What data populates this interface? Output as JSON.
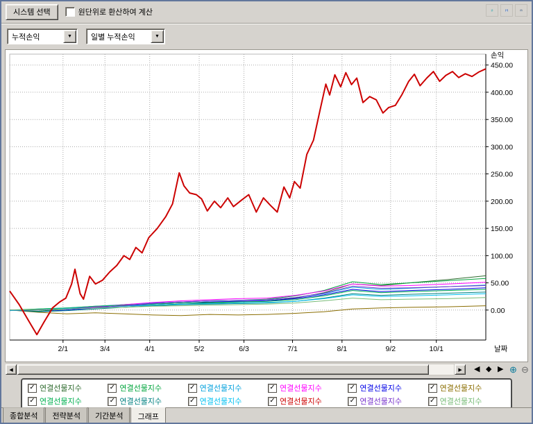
{
  "app": {
    "background": "#d6d3ce",
    "accent_red": "#cc0000"
  },
  "toolbar": {
    "system_select_label": "시스템 선택",
    "checkbox_label": "원단위로 환산하여 계산",
    "checkbox_checked": false,
    "icons": [
      {
        "name": "refresh-icon",
        "color": "#009aa8"
      },
      {
        "name": "save-icon",
        "color": "#3a66b0"
      },
      {
        "name": "print-icon",
        "color": "#5a6a7a"
      }
    ]
  },
  "filters": {
    "combo1_value": "누적손익",
    "combo2_value": "일별 누적손익",
    "dropdown_glyph": "▼"
  },
  "chart_data": {
    "type": "line",
    "title": "",
    "ylabel": "손익",
    "xlabel": "날짜",
    "ylim": [
      -55,
      470
    ],
    "grid": true,
    "legend_position": "bottom",
    "y_tick_values": [
      450,
      400,
      350,
      300,
      250,
      200,
      150,
      100,
      50,
      0
    ],
    "y_ticks": [
      "450.00",
      "400.00",
      "350.00",
      "300.00",
      "250.00",
      "200.00",
      "150.00",
      "100.00",
      "50.00",
      "0.00"
    ],
    "x_ticks": [
      {
        "label": "2/1",
        "pos": 0.112
      },
      {
        "label": "3/4",
        "pos": 0.2
      },
      {
        "label": "4/1",
        "pos": 0.294
      },
      {
        "label": "5/2",
        "pos": 0.398
      },
      {
        "label": "6/3",
        "pos": 0.492
      },
      {
        "label": "7/1",
        "pos": 0.594
      },
      {
        "label": "8/1",
        "pos": 0.698
      },
      {
        "label": "9/2",
        "pos": 0.8
      },
      {
        "label": "10/1",
        "pos": 0.896
      }
    ],
    "x_shared": [
      0,
      0.06,
      0.12,
      0.18,
      0.24,
      0.3,
      0.36,
      0.42,
      0.48,
      0.54,
      0.6,
      0.66,
      0.72,
      0.78,
      0.84,
      0.92,
      1.0
    ],
    "series": [
      {
        "name": "연결선물지수",
        "color": "#2d6a2d",
        "width": 1,
        "values": [
          0,
          1,
          3,
          5,
          7,
          9,
          11,
          13,
          15,
          17,
          22,
          32,
          48,
          45,
          50,
          56,
          63
        ]
      },
      {
        "name": "연결선물지수",
        "color": "#00a43c",
        "width": 1,
        "values": [
          0,
          -2,
          2,
          6,
          10,
          13,
          15,
          17,
          18,
          20,
          26,
          36,
          52,
          47,
          50,
          54,
          58
        ]
      },
      {
        "name": "연결선물지수",
        "color": "#00a0dc",
        "width": 1,
        "values": [
          -1,
          2,
          4,
          7,
          10,
          13,
          15,
          17,
          18,
          19,
          23,
          30,
          42,
          38,
          40,
          43,
          46
        ]
      },
      {
        "name": "연결선물지수",
        "color": "#ff00ff",
        "width": 1,
        "values": [
          0,
          1,
          3,
          6,
          10,
          14,
          17,
          19,
          21,
          22,
          27,
          35,
          48,
          44,
          45,
          48,
          51
        ]
      },
      {
        "name": "연결선물지수",
        "color": "#0000e6",
        "width": 1,
        "values": [
          0,
          -3,
          0,
          4,
          8,
          11,
          13,
          15,
          16,
          17,
          21,
          28,
          38,
          34,
          36,
          38,
          41
        ]
      },
      {
        "name": "연결선물지수",
        "color": "#8a6d00",
        "width": 1,
        "values": [
          0,
          -4,
          -7,
          -5,
          -7,
          -9,
          -10,
          -8,
          -9,
          -8,
          -6,
          -3,
          2,
          4,
          5,
          6,
          8
        ]
      },
      {
        "name": "연결선물지수",
        "color": "#00b050",
        "width": 1,
        "values": [
          0,
          2,
          4,
          7,
          9,
          11,
          13,
          14,
          15,
          16,
          19,
          26,
          36,
          32,
          34,
          36,
          38
        ]
      },
      {
        "name": "연결선물지수",
        "color": "#008080",
        "width": 1,
        "values": [
          0,
          -3,
          -1,
          2,
          5,
          8,
          10,
          11,
          12,
          13,
          16,
          22,
          30,
          27,
          29,
          31,
          33
        ]
      },
      {
        "name": "연결선물지수",
        "color": "#00c0f0",
        "width": 1,
        "values": [
          -1,
          1,
          3,
          5,
          7,
          9,
          11,
          12,
          13,
          14,
          16,
          21,
          28,
          25,
          26,
          28,
          30
        ]
      },
      {
        "name": "연결선물지수",
        "color": "#7733cc",
        "width": 1,
        "values": [
          0,
          0,
          2,
          5,
          8,
          12,
          15,
          17,
          18,
          19,
          23,
          31,
          44,
          40,
          41,
          43,
          45
        ]
      },
      {
        "name": "연결선물지수",
        "color": "#77bb77",
        "width": 1,
        "values": [
          0,
          1,
          2,
          4,
          5,
          7,
          8,
          9,
          10,
          11,
          13,
          17,
          22,
          19,
          20,
          21,
          23
        ]
      },
      {
        "name": "연결선물지수",
        "color": "#cc0000",
        "width": 2,
        "points": [
          [
            0,
            35
          ],
          [
            0.02,
            10
          ],
          [
            0.04,
            -20
          ],
          [
            0.057,
            -45
          ],
          [
            0.072,
            -22
          ],
          [
            0.09,
            4
          ],
          [
            0.105,
            15
          ],
          [
            0.118,
            22
          ],
          [
            0.13,
            48
          ],
          [
            0.137,
            75
          ],
          [
            0.148,
            30
          ],
          [
            0.155,
            20
          ],
          [
            0.168,
            62
          ],
          [
            0.18,
            48
          ],
          [
            0.195,
            55
          ],
          [
            0.21,
            70
          ],
          [
            0.225,
            82
          ],
          [
            0.24,
            100
          ],
          [
            0.252,
            93
          ],
          [
            0.265,
            115
          ],
          [
            0.278,
            105
          ],
          [
            0.292,
            133
          ],
          [
            0.31,
            150
          ],
          [
            0.328,
            172
          ],
          [
            0.342,
            195
          ],
          [
            0.356,
            252
          ],
          [
            0.366,
            228
          ],
          [
            0.378,
            215
          ],
          [
            0.392,
            212
          ],
          [
            0.403,
            204
          ],
          [
            0.415,
            182
          ],
          [
            0.43,
            200
          ],
          [
            0.443,
            188
          ],
          [
            0.458,
            206
          ],
          [
            0.47,
            190
          ],
          [
            0.487,
            202
          ],
          [
            0.502,
            212
          ],
          [
            0.518,
            180
          ],
          [
            0.533,
            206
          ],
          [
            0.548,
            192
          ],
          [
            0.562,
            180
          ],
          [
            0.576,
            226
          ],
          [
            0.588,
            206
          ],
          [
            0.598,
            236
          ],
          [
            0.61,
            224
          ],
          [
            0.624,
            286
          ],
          [
            0.638,
            312
          ],
          [
            0.652,
            368
          ],
          [
            0.664,
            415
          ],
          [
            0.672,
            395
          ],
          [
            0.683,
            432
          ],
          [
            0.695,
            410
          ],
          [
            0.706,
            436
          ],
          [
            0.718,
            414
          ],
          [
            0.729,
            426
          ],
          [
            0.742,
            381
          ],
          [
            0.756,
            392
          ],
          [
            0.77,
            386
          ],
          [
            0.784,
            362
          ],
          [
            0.796,
            372
          ],
          [
            0.81,
            376
          ],
          [
            0.824,
            396
          ],
          [
            0.838,
            420
          ],
          [
            0.85,
            433
          ],
          [
            0.862,
            412
          ],
          [
            0.876,
            426
          ],
          [
            0.89,
            438
          ],
          [
            0.903,
            420
          ],
          [
            0.916,
            431
          ],
          [
            0.93,
            438
          ],
          [
            0.943,
            427
          ],
          [
            0.957,
            434
          ],
          [
            0.971,
            429
          ],
          [
            0.985,
            437
          ],
          [
            1,
            443
          ]
        ]
      }
    ]
  },
  "scrollbar": {
    "left_arrow": "◀",
    "right_arrow": "▶",
    "nav_left": "◀",
    "nav_center": "◆",
    "nav_right": "▶",
    "zoom_in": "⊕",
    "zoom_out": "⊖"
  },
  "legend": {
    "check_glyph": "✓",
    "items": [
      {
        "label": "연결선물지수",
        "color": "#2d6a2d",
        "checked": true
      },
      {
        "label": "연결선물지수",
        "color": "#00a43c",
        "checked": true
      },
      {
        "label": "연결선물지수",
        "color": "#00a0dc",
        "checked": true
      },
      {
        "label": "연결선물지수",
        "color": "#ff00ff",
        "checked": true
      },
      {
        "label": "연결선물지수",
        "color": "#0000e6",
        "checked": true
      },
      {
        "label": "연결선물지수",
        "color": "#8a6d00",
        "checked": true
      },
      {
        "label": "연결선물지수",
        "color": "#00b050",
        "checked": true
      },
      {
        "label": "연결선물지수",
        "color": "#008080",
        "checked": true
      },
      {
        "label": "연결선물지수",
        "color": "#00c0f0",
        "checked": true
      },
      {
        "label": "연결선물지수",
        "color": "#cc0000",
        "checked": true
      },
      {
        "label": "연결선물지수",
        "color": "#7733cc",
        "checked": true
      },
      {
        "label": "연결선물지수",
        "color": "#77bb77",
        "checked": true
      }
    ]
  },
  "tabs": {
    "items": [
      {
        "label": "종합분석",
        "active": false
      },
      {
        "label": "전략분석",
        "active": false
      },
      {
        "label": "기간분석",
        "active": false
      },
      {
        "label": "그래프",
        "active": true
      }
    ]
  }
}
